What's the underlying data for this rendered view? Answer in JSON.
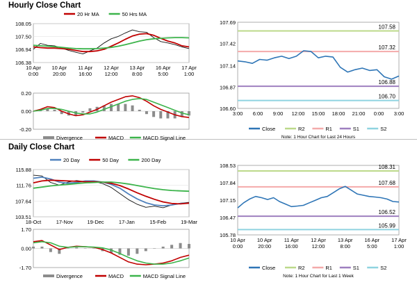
{
  "sections": {
    "hourly_title": "Hourly Close Chart",
    "daily_title": "Daily Close Chart"
  },
  "colors": {
    "price": "#111111",
    "ma_short": "#c00000",
    "ma_long": "#3cb44b",
    "macd": "#c00000",
    "signal": "#3cb44b",
    "divergence": "#8c8c8c",
    "close": "#2e75b6",
    "r2": "#bcd98a",
    "r1": "#f4aaaa",
    "s1": "#9e7fbf",
    "s2": "#8fd3e0"
  },
  "chart_data": [
    {
      "id": "hourly-price",
      "type": "line",
      "ylim": [
        106.38,
        108.05
      ],
      "yticks": [
        106.38,
        106.94,
        107.5,
        108.05
      ],
      "ytick_labels": [
        "106.38",
        "106.94",
        "107.50",
        "108.05"
      ],
      "xtick_labels": [
        "10 Apr\n0:00",
        "10 Apr\n20:00",
        "11 Apr\n16:00",
        "12 Apr\n12:00",
        "13 Apr\n8:00",
        "16 Apr\n5:00",
        "17 Apr\n1:00"
      ],
      "series": [
        {
          "name": "20 Hr MA",
          "values": [
            107.05,
            107.02,
            107.0,
            107.0,
            106.98,
            106.95,
            106.9,
            106.85,
            106.85,
            106.88,
            106.95,
            107.08,
            107.22,
            107.38,
            107.52,
            107.6,
            107.62,
            107.55,
            107.42,
            107.3,
            107.22,
            107.1,
            107.05
          ]
        },
        {
          "name": "50 Hrs MA",
          "values": [
            107.12,
            107.1,
            107.08,
            107.06,
            107.03,
            107.0,
            106.98,
            106.97,
            106.97,
            106.98,
            107.0,
            107.03,
            107.08,
            107.15,
            107.22,
            107.3,
            107.36,
            107.4,
            107.42,
            107.44,
            107.45,
            107.45,
            107.44
          ]
        }
      ],
      "price": [
        106.95,
        107.2,
        107.12,
        107.1,
        107.0,
        106.9,
        106.82,
        106.75,
        106.88,
        107.0,
        107.22,
        107.4,
        107.5,
        107.65,
        107.78,
        107.7,
        107.68,
        107.45,
        107.28,
        107.22,
        107.15,
        107.05,
        106.98
      ],
      "legend": [
        "20 Hr MA",
        "50 Hrs MA"
      ]
    },
    {
      "id": "hourly-macd",
      "type": "line",
      "ylim": [
        -0.2,
        0.2
      ],
      "yticks": [
        0.2,
        0.0,
        -0.2
      ],
      "ytick_labels": [
        "0.20",
        "0.00",
        "-0.20"
      ],
      "series": [
        {
          "name": "MACD",
          "values": [
            0.0,
            0.02,
            0.05,
            0.04,
            0.0,
            -0.03,
            -0.05,
            -0.04,
            -0.01,
            0.02,
            0.06,
            0.1,
            0.13,
            0.16,
            0.17,
            0.15,
            0.11,
            0.06,
            0.02,
            -0.01,
            -0.04,
            -0.06,
            -0.07
          ]
        },
        {
          "name": "MACD Signal Line",
          "values": [
            0.0,
            0.01,
            0.03,
            0.03,
            0.02,
            0.0,
            -0.02,
            -0.03,
            -0.03,
            -0.01,
            0.02,
            0.05,
            0.08,
            0.11,
            0.13,
            0.14,
            0.13,
            0.1,
            0.07,
            0.04,
            0.01,
            -0.02,
            -0.04
          ]
        }
      ],
      "legend": [
        "Divergence",
        "MACD",
        "MACD Signal Line"
      ]
    },
    {
      "id": "hourly-levels",
      "type": "line",
      "ylim": [
        106.6,
        107.69
      ],
      "yticks": [
        107.69,
        107.42,
        107.14,
        106.87,
        106.6
      ],
      "ytick_labels": [
        "107.69",
        "107.42",
        "107.14",
        "106.87",
        "106.60"
      ],
      "xtick_labels": [
        "3:00",
        "6:00",
        "9:00",
        "12:00",
        "15:00",
        "18:00",
        "21:00",
        "0:00",
        "3:00"
      ],
      "levels": [
        {
          "name": "R2",
          "value": 107.58,
          "label": "107.58"
        },
        {
          "name": "R1",
          "value": 107.32,
          "label": "107.32"
        },
        {
          "name": "S1",
          "value": 106.88,
          "label": "106.88"
        },
        {
          "name": "S2",
          "value": 106.7,
          "label": "106.70"
        }
      ],
      "close": [
        107.2,
        107.19,
        107.17,
        107.22,
        107.21,
        107.24,
        107.26,
        107.23,
        107.26,
        107.33,
        107.32,
        107.24,
        107.26,
        107.25,
        107.12,
        107.06,
        107.09,
        107.11,
        107.08,
        107.09,
        107.0,
        106.97,
        107.01
      ],
      "legend": [
        "Close",
        "R2",
        "R1",
        "S1",
        "S2"
      ],
      "note": "Note: 1 Hour Chart for Last 24 Hours"
    },
    {
      "id": "daily-price",
      "type": "line",
      "ylim": [
        103.51,
        115.88
      ],
      "yticks": [
        115.88,
        111.76,
        107.64,
        103.51
      ],
      "ytick_labels": [
        "115.88",
        "111.76",
        "107.64",
        "103.51"
      ],
      "xtick_labels": [
        "18-Oct",
        "17-Nov",
        "19-Dec",
        "17-Jan",
        "15-Feb",
        "19-Mar"
      ],
      "series": [
        {
          "name": "20 Day",
          "values": [
            113.6,
            113.9,
            113.4,
            112.6,
            112.3,
            112.5,
            112.9,
            112.9,
            112.6,
            112.0,
            111.0,
            109.5,
            108.2,
            107.2,
            106.6,
            106.4,
            106.6,
            107.0,
            107.1
          ]
        },
        {
          "name": "50 Day",
          "values": [
            112.4,
            112.9,
            113.1,
            113.0,
            112.9,
            112.8,
            112.7,
            112.7,
            112.6,
            112.3,
            111.7,
            110.8,
            109.8,
            108.9,
            108.1,
            107.4,
            107.0,
            106.9,
            107.1
          ]
        },
        {
          "name": "200 Day",
          "values": [
            111.0,
            111.3,
            111.6,
            111.8,
            112.0,
            112.2,
            112.4,
            112.5,
            112.6,
            112.6,
            112.4,
            112.1,
            111.7,
            111.3,
            110.9,
            110.6,
            110.4,
            110.3,
            110.2
          ]
        }
      ],
      "price": [
        114.4,
        114.2,
        112.5,
        111.8,
        112.6,
        113.0,
        112.7,
        112.8,
        112.2,
        111.2,
        109.6,
        108.0,
        106.8,
        106.0,
        106.3,
        105.9,
        106.6,
        107.1,
        107.3
      ],
      "legend": [
        "20 Day",
        "50 Day",
        "200 Day"
      ]
    },
    {
      "id": "daily-macd",
      "type": "line",
      "ylim": [
        -1.7,
        1.7
      ],
      "yticks": [
        1.7,
        0.0,
        -1.7
      ],
      "ytick_labels": [
        "1.70",
        "0.00",
        "-1.70"
      ],
      "series": [
        {
          "name": "MACD",
          "values": [
            0.6,
            0.7,
            0.3,
            -0.1,
            0.1,
            0.2,
            0.15,
            0.1,
            -0.1,
            -0.4,
            -0.8,
            -1.2,
            -1.4,
            -1.45,
            -1.4,
            -1.3,
            -1.1,
            -0.8,
            -0.6
          ]
        },
        {
          "name": "MACD Signal Line",
          "values": [
            0.5,
            0.6,
            0.5,
            0.2,
            0.1,
            0.15,
            0.15,
            0.12,
            0.05,
            -0.15,
            -0.45,
            -0.8,
            -1.1,
            -1.3,
            -1.4,
            -1.4,
            -1.3,
            -1.1,
            -0.85
          ]
        }
      ],
      "legend": [
        "Divergence",
        "MACD",
        "MACD Signal Line"
      ]
    },
    {
      "id": "daily-levels",
      "type": "line",
      "ylim": [
        105.78,
        108.53
      ],
      "yticks": [
        108.53,
        107.84,
        107.15,
        106.47,
        105.78
      ],
      "ytick_labels": [
        "108.53",
        "107.84",
        "107.15",
        "106.47",
        "105.78"
      ],
      "xtick_labels": [
        "10 Apr\n0:00",
        "10 Apr\n20:00",
        "11 Apr\n16:00",
        "12 Apr\n12:00",
        "13 Apr\n8:00",
        "16 Apr\n5:00",
        "17 Apr\n1:00"
      ],
      "levels": [
        {
          "name": "R2",
          "value": 108.31,
          "label": "108.31"
        },
        {
          "name": "R1",
          "value": 107.68,
          "label": "107.68"
        },
        {
          "name": "S1",
          "value": 106.52,
          "label": "106.52"
        },
        {
          "name": "S2",
          "value": 105.99,
          "label": "105.99"
        }
      ],
      "close": [
        106.85,
        107.05,
        107.2,
        107.3,
        107.25,
        107.18,
        107.25,
        107.1,
        107.0,
        106.9,
        106.92,
        106.95,
        107.05,
        107.15,
        107.25,
        107.3,
        107.45,
        107.6,
        107.7,
        107.55,
        107.4,
        107.35,
        107.3,
        107.28,
        107.25,
        107.2,
        107.1,
        107.08
      ],
      "legend": [
        "Close",
        "R2",
        "R1",
        "S1",
        "S2"
      ],
      "note": "Note: 1 Hour Chart for Last 1 Week"
    }
  ]
}
